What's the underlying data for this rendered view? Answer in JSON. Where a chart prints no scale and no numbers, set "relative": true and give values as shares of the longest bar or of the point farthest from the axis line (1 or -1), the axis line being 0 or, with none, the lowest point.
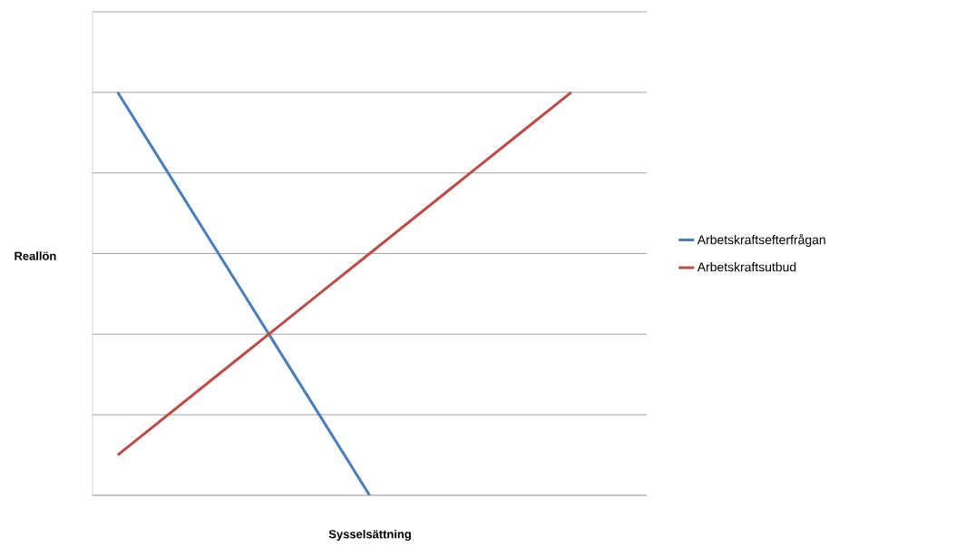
{
  "chart_data": {
    "type": "line",
    "xlabel": "Sysselsättning",
    "ylabel": "Reallön",
    "relative": true,
    "grid": "y",
    "legend": "right",
    "categories": [
      null,
      null,
      null,
      null,
      null,
      null,
      null,
      null,
      null,
      null,
      null
    ],
    "series": [
      {
        "name": "Arbetskraftsefterfrågan",
        "color": "#4a7ebb",
        "values": [
          1,
          0.8,
          0.6,
          0.4,
          0.2,
          0,
          null,
          null,
          null,
          null,
          null
        ]
      },
      {
        "name": "Arbetskraftsutbud",
        "color": "#be4b48",
        "values": [
          0.1,
          0.2,
          0.3,
          0.4,
          0.5,
          0.6,
          0.7,
          0.8,
          0.9,
          1.0,
          null
        ]
      }
    ]
  }
}
